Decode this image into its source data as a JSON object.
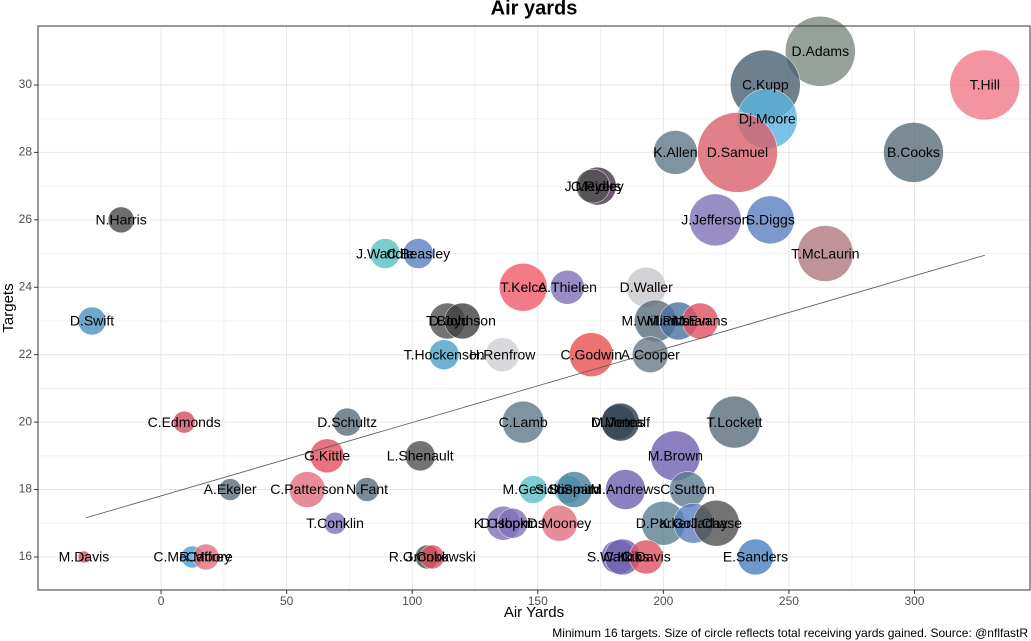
{
  "chart_data": {
    "type": "scatter",
    "title": "Air yards",
    "x_label": "Air Yards",
    "y_label": "Targets",
    "caption": "Minimum 16 targets. Size of circle reflects total receiving yards gained. Source: @nflfastR",
    "xlim": [
      -49,
      346
    ],
    "ylim": [
      15.02,
      31.75
    ],
    "xticks": [
      0,
      50,
      100,
      150,
      200,
      250,
      300
    ],
    "yticks": [
      16,
      18,
      20,
      22,
      24,
      26,
      28,
      30
    ],
    "grid": true,
    "trend": {
      "x": [
        -30,
        328
      ],
      "y": [
        17.16,
        24.95
      ]
    },
    "points": [
      {
        "label": "D.Adams",
        "x": 262.5,
        "y": 31,
        "size": 1914,
        "color": "#7a8a80"
      },
      {
        "label": "C.Kupp",
        "x": 240.6,
        "y": 30,
        "size": 1914,
        "color": "#4a6070"
      },
      {
        "label": "T.Hill",
        "x": 328,
        "y": 30,
        "size": 1914,
        "color": "#f07a8a"
      },
      {
        "label": "Dj.Moore",
        "x": 241.4,
        "y": 29,
        "size": 1406,
        "color": "#5ab4e0"
      },
      {
        "label": "D.Samuel",
        "x": 229.5,
        "y": 28,
        "size": 2500,
        "color": "#d8606a"
      },
      {
        "label": "K.Allen",
        "x": 204.8,
        "y": 28,
        "size": 756,
        "color": "#607888"
      },
      {
        "label": "B.Cooks",
        "x": 299.6,
        "y": 28,
        "size": 1406,
        "color": "#5a6e7a"
      },
      {
        "label": "C.Ridley",
        "x": 173.7,
        "y": 27,
        "size": 564,
        "color": "#4a3050"
      },
      {
        "label": "J.Meyers",
        "x": 172,
        "y": 27,
        "size": 452,
        "color": "#505050"
      },
      {
        "label": "S.Diggs",
        "x": 242.6,
        "y": 26,
        "size": 900,
        "color": "#5a80c0"
      },
      {
        "label": "J.Jefferson",
        "x": 220.7,
        "y": 26,
        "size": 1056,
        "color": "#8070b8"
      },
      {
        "label": "T.McLaurin",
        "x": 264.5,
        "y": 25,
        "size": 1225,
        "color": "#b07880"
      },
      {
        "label": "N.Harris",
        "x": -15.9,
        "y": 26,
        "size": 264,
        "color": "#4a4a4a"
      },
      {
        "label": "J.Waddle",
        "x": 89.2,
        "y": 25,
        "size": 352,
        "color": "#5ac0c0"
      },
      {
        "label": "C.Beasley",
        "x": 102.4,
        "y": 25,
        "size": 352,
        "color": "#5a80c0"
      },
      {
        "label": "T.Kelce",
        "x": 144.2,
        "y": 24,
        "size": 900,
        "color": "#f05a6a"
      },
      {
        "label": "A.Thielen",
        "x": 161.8,
        "y": 24,
        "size": 452,
        "color": "#8070b8"
      },
      {
        "label": "D.Waller",
        "x": 193.2,
        "y": 24,
        "size": 625,
        "color": "#c8c8cc"
      },
      {
        "label": "D.Swift",
        "x": -27.5,
        "y": 23,
        "size": 306,
        "color": "#4a90c0"
      },
      {
        "label": "T.Boyd",
        "x": 114,
        "y": 23,
        "size": 506,
        "color": "#505050"
      },
      {
        "label": "D.Johnson",
        "x": 120,
        "y": 23,
        "size": 506,
        "color": "#404040"
      },
      {
        "label": "M.Williams",
        "x": 196.8,
        "y": 23,
        "size": 689,
        "color": "#5a6e7a"
      },
      {
        "label": "M.Pittman",
        "x": 206,
        "y": 23,
        "size": 564,
        "color": "#4a70a0"
      },
      {
        "label": "M.Evans",
        "x": 214.7,
        "y": 23,
        "size": 506,
        "color": "#e05060"
      },
      {
        "label": "T.Hockenson",
        "x": 112.7,
        "y": 22,
        "size": 352,
        "color": "#4aa0c8"
      },
      {
        "label": "H.Renfrow",
        "x": 135.9,
        "y": 22,
        "size": 452,
        "color": "#d0d0d4"
      },
      {
        "label": "C.Godwin",
        "x": 171.3,
        "y": 22,
        "size": 756,
        "color": "#e85050"
      },
      {
        "label": "A.Cooper",
        "x": 194.8,
        "y": 22,
        "size": 506,
        "color": "#6a7a88"
      },
      {
        "label": "C.Edmonds",
        "x": 9.2,
        "y": 20,
        "size": 189,
        "color": "#d05060"
      },
      {
        "label": "D.Schultz",
        "x": 74.1,
        "y": 20,
        "size": 306,
        "color": "#5a6e7a"
      },
      {
        "label": "C.Lamb",
        "x": 144.2,
        "y": 20,
        "size": 689,
        "color": "#607888"
      },
      {
        "label": "M.Jones",
        "x": 182,
        "y": 20,
        "size": 452,
        "color": "#607888"
      },
      {
        "label": "D.Metcalf",
        "x": 182.9,
        "y": 20,
        "size": 564,
        "color": "#2a3a48"
      },
      {
        "label": "T.Lockett",
        "x": 228.3,
        "y": 20,
        "size": 1056,
        "color": "#5a6e7a"
      },
      {
        "label": "G.Kittle",
        "x": 66.1,
        "y": 19,
        "size": 452,
        "color": "#e05060"
      },
      {
        "label": "L.Shenault",
        "x": 103.2,
        "y": 19,
        "size": 352,
        "color": "#505050"
      },
      {
        "label": "M.Brown",
        "x": 204.8,
        "y": 19,
        "size": 977,
        "color": "#7060b0"
      },
      {
        "label": "A.Ekeler",
        "x": 27.5,
        "y": 18,
        "size": 189,
        "color": "#5a6e7a"
      },
      {
        "label": "C.Patterson",
        "x": 58.2,
        "y": 18,
        "size": 506,
        "color": "#e07080"
      },
      {
        "label": "N.Fant",
        "x": 82,
        "y": 18,
        "size": 225,
        "color": "#5a6e7a"
      },
      {
        "label": "M.Gesicki",
        "x": 148.2,
        "y": 18,
        "size": 306,
        "color": "#5ac0c8"
      },
      {
        "label": "S.Shepard",
        "x": 162,
        "y": 18,
        "size": 306,
        "color": "#5ac0c8"
      },
      {
        "label": "D.Smith",
        "x": 164.5,
        "y": 18,
        "size": 506,
        "color": "#4a80a0"
      },
      {
        "label": "M.Andrews",
        "x": 184.9,
        "y": 18,
        "size": 625,
        "color": "#7060b0"
      },
      {
        "label": "C.Sutton",
        "x": 209.6,
        "y": 18,
        "size": 506,
        "color": "#5a7a90"
      },
      {
        "label": "K.Osborn",
        "x": 136.3,
        "y": 17,
        "size": 452,
        "color": "#8070b8"
      },
      {
        "label": "D.Hopkins",
        "x": 140,
        "y": 17,
        "size": 352,
        "color": "#8070b8"
      },
      {
        "label": "D.Mooney",
        "x": 158.6,
        "y": 17,
        "size": 506,
        "color": "#e07080"
      },
      {
        "label": "D.Parker",
        "x": 200,
        "y": 17,
        "size": 756,
        "color": "#5a8090"
      },
      {
        "label": "K.Golladay",
        "x": 212,
        "y": 17,
        "size": 625,
        "color": "#5a80c0"
      },
      {
        "label": "J.Chase",
        "x": 221.1,
        "y": 17,
        "size": 827,
        "color": "#505050"
      },
      {
        "label": "T.Conklin",
        "x": 69.3,
        "y": 17,
        "size": 189,
        "color": "#8070b8"
      },
      {
        "label": "C.McCaffrey",
        "x": 12.4,
        "y": 16,
        "size": 189,
        "color": "#4aa0d8"
      },
      {
        "label": "R.Moore",
        "x": 17.9,
        "y": 16,
        "size": 264,
        "color": "#e07080"
      },
      {
        "label": "M.Davis",
        "x": -30.7,
        "y": 16,
        "size": 56,
        "color": "#d05060"
      },
      {
        "label": "J.Cook",
        "x": 106,
        "y": 16,
        "size": 225,
        "color": "#505050"
      },
      {
        "label": "R.Gronkowski",
        "x": 108,
        "y": 16,
        "size": 225,
        "color": "#e05060"
      },
      {
        "label": "S.Watkins",
        "x": 182,
        "y": 16,
        "size": 452,
        "color": "#7060b0"
      },
      {
        "label": "C.Kirk",
        "x": 183.7,
        "y": 16,
        "size": 506,
        "color": "#7060b0"
      },
      {
        "label": "C.Davis",
        "x": 193.2,
        "y": 16,
        "size": 452,
        "color": "#e05060"
      },
      {
        "label": "E.Sanders",
        "x": 236.7,
        "y": 16,
        "size": 506,
        "color": "#4a80c0"
      }
    ]
  }
}
